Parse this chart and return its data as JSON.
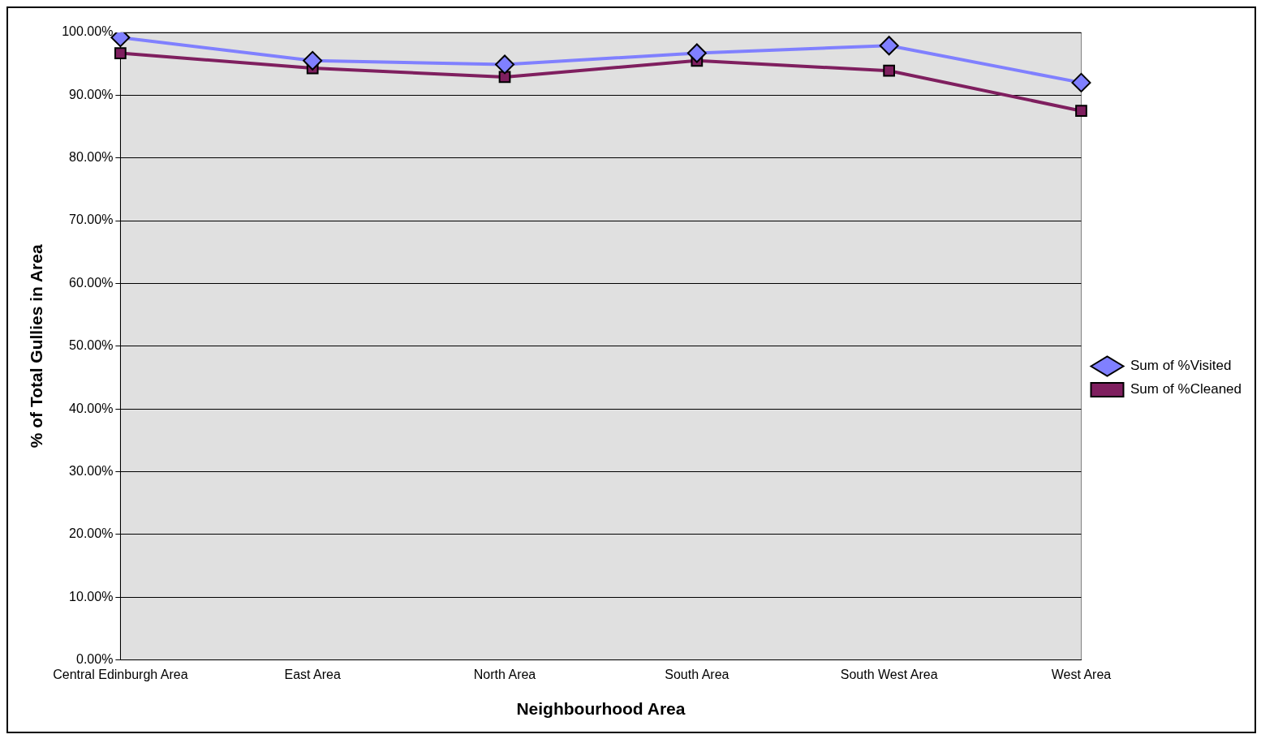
{
  "chart_data": {
    "type": "line",
    "xlabel": "Neighbourhood Area",
    "ylabel": "% of Total Gullies in Area",
    "categories": [
      "Central Edinburgh Area",
      "East Area",
      "North Area",
      "South Area",
      "South West Area",
      "West Area"
    ],
    "series": [
      {
        "name": "Sum of %Visited",
        "color": "#8080ff",
        "marker": "diamond",
        "values": [
          99.2,
          95.5,
          94.9,
          96.7,
          97.9,
          92.0
        ]
      },
      {
        "name": "Sum of %Cleaned",
        "color": "#7f1f5f",
        "marker": "square",
        "values": [
          96.7,
          94.3,
          92.9,
          95.5,
          93.9,
          87.5
        ]
      }
    ],
    "ylim": [
      0,
      100
    ],
    "yticks": [
      {
        "value": 0,
        "label": "0.00%"
      },
      {
        "value": 10,
        "label": "10.00%"
      },
      {
        "value": 20,
        "label": "20.00%"
      },
      {
        "value": 30,
        "label": "30.00%"
      },
      {
        "value": 40,
        "label": "40.00%"
      },
      {
        "value": 50,
        "label": "50.00%"
      },
      {
        "value": 60,
        "label": "60.00%"
      },
      {
        "value": 70,
        "label": "70.00%"
      },
      {
        "value": 80,
        "label": "80.00%"
      },
      {
        "value": 90,
        "label": "90.00%"
      },
      {
        "value": 100,
        "label": "100.00%"
      }
    ],
    "grid": "y",
    "legend": "right",
    "line_style": "solid"
  }
}
